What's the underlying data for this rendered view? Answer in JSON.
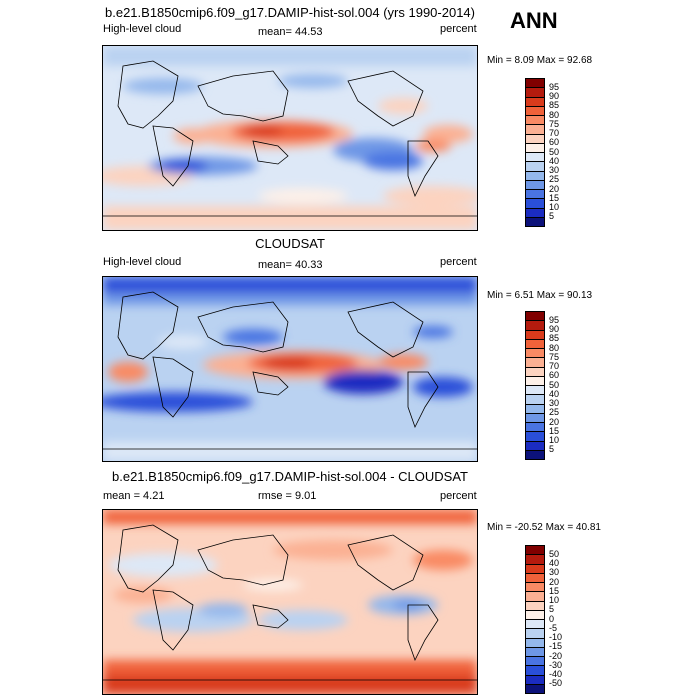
{
  "season_label": "ANN",
  "panels": [
    {
      "title": "b.e21.B1850cmip6.f09_g17.DAMIP-hist-sol.004 (yrs 1990-2014)",
      "left_label": "High-level cloud",
      "center_label": "mean=  44.53",
      "units": "percent",
      "minmax": "Min =   8.09 Max =  92.68",
      "colorbar": {
        "labels": [
          "95",
          "90",
          "85",
          "80",
          "75",
          "70",
          "60",
          "50",
          "40",
          "30",
          "25",
          "20",
          "15",
          "10",
          "5"
        ],
        "colors": [
          "#800000",
          "#b41b0e",
          "#d93b1c",
          "#f0623a",
          "#f98a64",
          "#fbb093",
          "#fcd3c0",
          "#fdf0e8",
          "#dde8f7",
          "#bad2f1",
          "#94b8ec",
          "#6e97e6",
          "#4a74e2",
          "#2a4fd9",
          "#1b2cc1",
          "#0c127a"
        ]
      }
    },
    {
      "title": "CLOUDSAT",
      "left_label": "High-level cloud",
      "center_label": "mean=  40.33",
      "units": "percent",
      "minmax": "Min =   6.51 Max =  90.13",
      "colorbar": {
        "labels": [
          "95",
          "90",
          "85",
          "80",
          "75",
          "70",
          "60",
          "50",
          "40",
          "30",
          "25",
          "20",
          "15",
          "10",
          "5"
        ],
        "colors": [
          "#800000",
          "#b41b0e",
          "#d93b1c",
          "#f0623a",
          "#f98a64",
          "#fbb093",
          "#fcd3c0",
          "#fdf0e8",
          "#dde8f7",
          "#bad2f1",
          "#94b8ec",
          "#6e97e6",
          "#4a74e2",
          "#2a4fd9",
          "#1b2cc1",
          "#0c127a"
        ]
      }
    },
    {
      "title": "b.e21.B1850cmip6.f09_g17.DAMIP-hist-sol.004 - CLOUDSAT",
      "left_label": "mean =   4.21",
      "center_label": "rmse =   9.01",
      "units": "percent",
      "minmax": "Min = -20.52 Max =  40.81",
      "colorbar": {
        "labels": [
          "50",
          "40",
          "30",
          "20",
          "15",
          "10",
          "5",
          "0",
          "-5",
          "-10",
          "-15",
          "-20",
          "-30",
          "-40",
          "-50"
        ],
        "colors": [
          "#800000",
          "#b41b0e",
          "#d93b1c",
          "#f0623a",
          "#f98a64",
          "#fbb093",
          "#fcd3c0",
          "#fdf0e8",
          "#dde8f7",
          "#bad2f1",
          "#94b8ec",
          "#6e97e6",
          "#4a74e2",
          "#2a4fd9",
          "#1b2cc1",
          "#0c127a"
        ]
      }
    }
  ]
}
